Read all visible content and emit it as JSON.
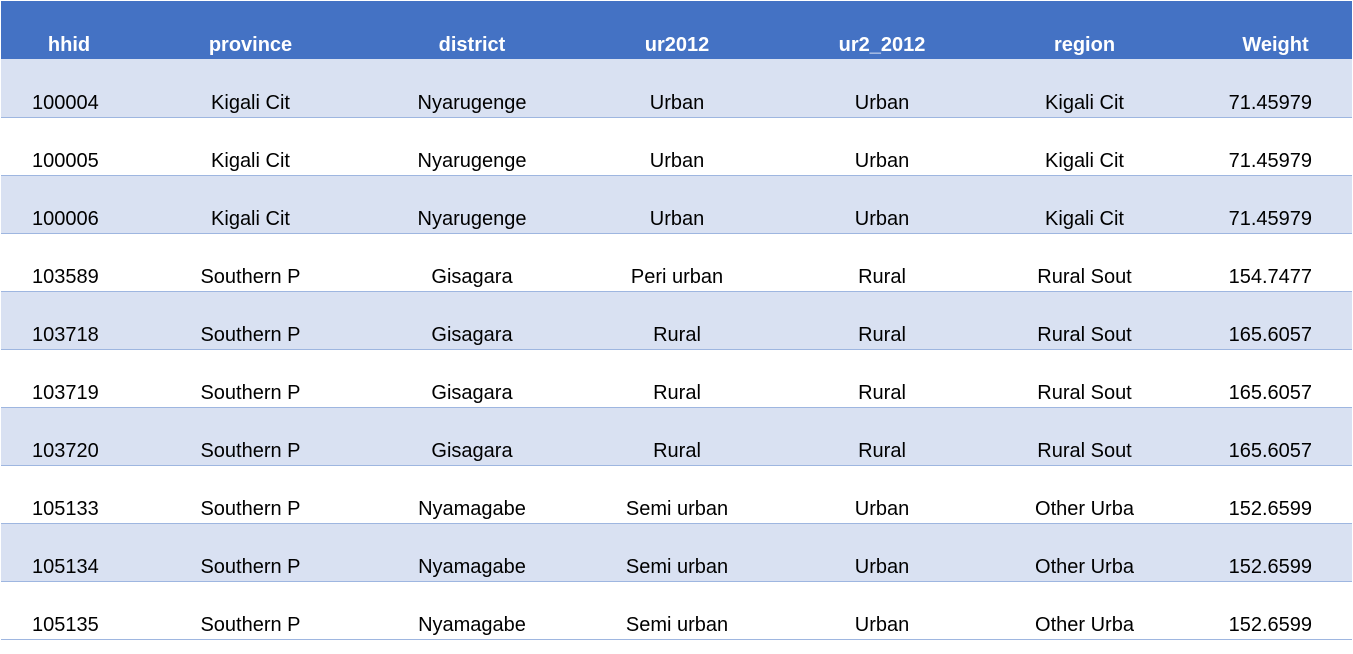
{
  "table": {
    "headers": [
      "hhid",
      "province",
      "district",
      "ur2012",
      "ur2_2012",
      "region",
      "Weight"
    ],
    "rows": [
      [
        "100004",
        "Kigali Cit",
        "Nyarugenge",
        "Urban",
        "Urban",
        "Kigali Cit",
        "71.45979"
      ],
      [
        "100005",
        "Kigali Cit",
        "Nyarugenge",
        "Urban",
        "Urban",
        "Kigali Cit",
        "71.45979"
      ],
      [
        "100006",
        "Kigali Cit",
        "Nyarugenge",
        "Urban",
        "Urban",
        "Kigali Cit",
        "71.45979"
      ],
      [
        "103589",
        "Southern P",
        "Gisagara",
        "Peri urban",
        "Rural",
        "Rural Sout",
        "154.7477"
      ],
      [
        "103718",
        "Southern P",
        "Gisagara",
        "Rural",
        "Rural",
        "Rural Sout",
        "165.6057"
      ],
      [
        "103719",
        "Southern P",
        "Gisagara",
        "Rural",
        "Rural",
        "Rural Sout",
        "165.6057"
      ],
      [
        "103720",
        "Southern P",
        "Gisagara",
        "Rural",
        "Rural",
        "Rural Sout",
        "165.6057"
      ],
      [
        "105133",
        "Southern P",
        "Nyamagabe",
        "Semi urban",
        "Urban",
        "Other Urba",
        "152.6599"
      ],
      [
        "105134",
        "Southern P",
        "Nyamagabe",
        "Semi urban",
        "Urban",
        "Other Urba",
        "152.6599"
      ],
      [
        "105135",
        "Southern P",
        "Nyamagabe",
        "Semi urban",
        "Urban",
        "Other Urba",
        "152.6599"
      ]
    ]
  },
  "colors": {
    "header_bg": "#4472c4",
    "header_text": "#ffffff",
    "band_row": "#d9e1f2",
    "plain_row": "#ffffff",
    "row_border": "#9eb6e0"
  }
}
